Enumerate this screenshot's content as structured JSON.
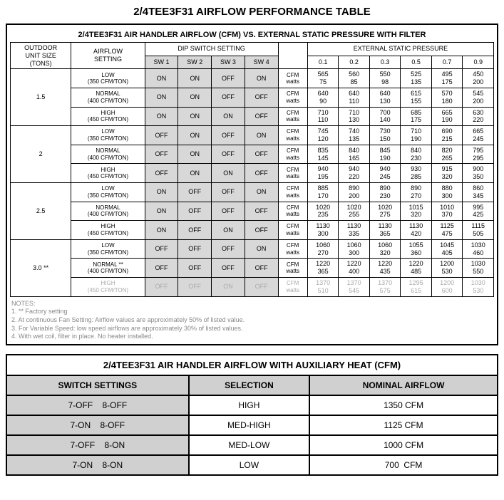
{
  "title": "2/4TEE3F31 AIRFLOW PERFORMANCE TABLE",
  "table1": {
    "subtitle": "2/4TEE3F31 AIR HANDLER AIRFLOW (CFM) VS. EXTERNAL STATIC PRESSURE WITH FILTER",
    "h_outdoor": "OUTDOOR\nUNIT SIZE\n(TONS)",
    "h_airflow": "AIRFLOW\nSETTING",
    "h_dip": "DIP SWITCH SETTING",
    "h_esp": "EXTERNAL STATIC PRESSURE",
    "sw": [
      "SW 1",
      "SW 2",
      "SW 3",
      "SW 4"
    ],
    "esp": [
      "0.1",
      "0.2",
      "0.3",
      "0.5",
      "0.7",
      "0.9"
    ],
    "cfm_watts_lbl": "CFM\nwatts",
    "groups": [
      {
        "size": "1.5",
        "rows": [
          {
            "set": "LOW\n(350 CFM/TON)",
            "sw": [
              "ON",
              "ON",
              "OFF",
              "ON"
            ],
            "v": [
              [
                "565",
                "75"
              ],
              [
                "560",
                "85"
              ],
              [
                "550",
                "98"
              ],
              [
                "525",
                "135"
              ],
              [
                "495",
                "175"
              ],
              [
                "450",
                "200"
              ]
            ]
          },
          {
            "set": "NORMAL\n(400 CFM/TON)",
            "sw": [
              "ON",
              "ON",
              "OFF",
              "OFF"
            ],
            "v": [
              [
                "640",
                "90"
              ],
              [
                "640",
                "110"
              ],
              [
                "640",
                "130"
              ],
              [
                "615",
                "155"
              ],
              [
                "570",
                "180"
              ],
              [
                "545",
                "200"
              ]
            ]
          },
          {
            "set": "HIGH\n(450 CFM/TON)",
            "sw": [
              "ON",
              "ON",
              "ON",
              "OFF"
            ],
            "v": [
              [
                "710",
                "110"
              ],
              [
                "710",
                "130"
              ],
              [
                "700",
                "140"
              ],
              [
                "685",
                "175"
              ],
              [
                "665",
                "190"
              ],
              [
                "630",
                "220"
              ]
            ]
          }
        ]
      },
      {
        "size": "2",
        "rows": [
          {
            "set": "LOW\n(350 CFM/TON)",
            "sw": [
              "OFF",
              "ON",
              "OFF",
              "ON"
            ],
            "v": [
              [
                "745",
                "120"
              ],
              [
                "740",
                "135"
              ],
              [
                "730",
                "150"
              ],
              [
                "710",
                "190"
              ],
              [
                "690",
                "215"
              ],
              [
                "665",
                "245"
              ]
            ]
          },
          {
            "set": "NORMAL\n(400 CFM/TON)",
            "sw": [
              "OFF",
              "ON",
              "OFF",
              "OFF"
            ],
            "v": [
              [
                "835",
                "145"
              ],
              [
                "840",
                "165"
              ],
              [
                "845",
                "190"
              ],
              [
                "840",
                "230"
              ],
              [
                "820",
                "265"
              ],
              [
                "795",
                "295"
              ]
            ]
          },
          {
            "set": "HIGH\n(450 CFM/TON)",
            "sw": [
              "OFF",
              "ON",
              "ON",
              "OFF"
            ],
            "v": [
              [
                "940",
                "195"
              ],
              [
                "940",
                "220"
              ],
              [
                "940",
                "245"
              ],
              [
                "930",
                "285"
              ],
              [
                "915",
                "320"
              ],
              [
                "900",
                "350"
              ]
            ]
          }
        ]
      },
      {
        "size": "2.5",
        "rows": [
          {
            "set": "LOW\n(350 CFM/TON)",
            "sw": [
              "ON",
              "OFF",
              "OFF",
              "ON"
            ],
            "v": [
              [
                "885",
                "170"
              ],
              [
                "890",
                "200"
              ],
              [
                "890",
                "230"
              ],
              [
                "890",
                "270"
              ],
              [
                "880",
                "300"
              ],
              [
                "860",
                "345"
              ]
            ]
          },
          {
            "set": "NORMAL\n(400 CFM/TON)",
            "sw": [
              "ON",
              "OFF",
              "OFF",
              "OFF"
            ],
            "v": [
              [
                "1020",
                "235"
              ],
              [
                "1020",
                "255"
              ],
              [
                "1020",
                "275"
              ],
              [
                "1015",
                "320"
              ],
              [
                "1010",
                "370"
              ],
              [
                "995",
                "425"
              ]
            ]
          },
          {
            "set": "HIGH\n(450 CFM/TON)",
            "sw": [
              "ON",
              "OFF",
              "ON",
              "OFF"
            ],
            "v": [
              [
                "1130",
                "300"
              ],
              [
                "1130",
                "335"
              ],
              [
                "1130",
                "365"
              ],
              [
                "1130",
                "420"
              ],
              [
                "1125",
                "475"
              ],
              [
                "1115",
                "505"
              ]
            ]
          }
        ]
      },
      {
        "size": "3.0 **",
        "rows": [
          {
            "set": "LOW\n(350 CFM/TON)",
            "sw": [
              "OFF",
              "OFF",
              "OFF",
              "ON"
            ],
            "v": [
              [
                "1060",
                "270"
              ],
              [
                "1060",
                "300"
              ],
              [
                "1060",
                "320"
              ],
              [
                "1055",
                "360"
              ],
              [
                "1045",
                "405"
              ],
              [
                "1030",
                "460"
              ]
            ]
          },
          {
            "set": "NORMAL **\n(400 CFM/TON)",
            "sw": [
              "OFF",
              "OFF",
              "OFF",
              "OFF"
            ],
            "v": [
              [
                "1220",
                "365"
              ],
              [
                "1220",
                "400"
              ],
              [
                "1220",
                "435"
              ],
              [
                "1220",
                "485"
              ],
              [
                "1200",
                "530"
              ],
              [
                "1030",
                "550"
              ]
            ]
          },
          {
            "set": "HIGH\n(450 CFM/TON)",
            "sw": [
              "OFF",
              "OFF",
              "ON",
              "OFF"
            ],
            "grey": true,
            "v": [
              [
                "1370",
                "510"
              ],
              [
                "1370",
                "545"
              ],
              [
                "1370",
                "575"
              ],
              [
                "1295",
                "615"
              ],
              [
                "1200",
                "600"
              ],
              [
                "1030",
                "530"
              ]
            ]
          }
        ]
      }
    ],
    "notes_h": "NOTES:",
    "notes": [
      "1. ** Factory setting",
      "2. At continuous Fan Setting:  Airflow values are approximately 50% of listed value.",
      "3. For Variable Speed:  low speed airflows are approximately 30% of listed values.",
      "4. With wet coil, filter in place. No heater installed."
    ]
  },
  "table2": {
    "title": "2/4TEE3F31 AIR HANDLER AIRFLOW WITH AUXILIARY HEAT (CFM)",
    "h": [
      "SWITCH SETTINGS",
      "SELECTION",
      "NOMINAL AIRFLOW"
    ],
    "rows": [
      {
        "sw": "7-OFF    8-OFF",
        "sel": "HIGH",
        "nom": "1350 CFM"
      },
      {
        "sw": "7-ON    8-OFF",
        "sel": "MED-HIGH",
        "nom": "1125 CFM"
      },
      {
        "sw": "7-OFF    8-ON",
        "sel": "MED-LOW",
        "nom": "1000 CFM"
      },
      {
        "sw": "7-ON    8-ON",
        "sel": "LOW",
        "nom": "700  CFM"
      }
    ]
  }
}
